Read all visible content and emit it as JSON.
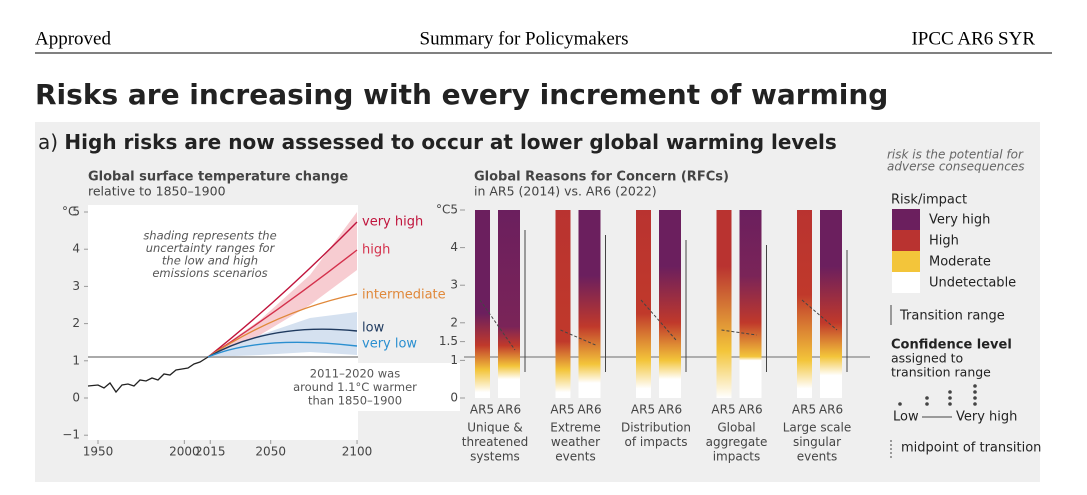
{
  "header": {
    "left": "Approved",
    "center": "Summary for Policymakers",
    "right": "IPCC AR6 SYR"
  },
  "title": "Risks are increasing with every increment of warming",
  "panel": {
    "prefix": "a)",
    "heading": "High risks are now assessed to occur at lower global warming levels"
  },
  "left_chart": {
    "title": "Global surface temperature change",
    "subtitle": "relative to 1850–1900",
    "unit": "°C",
    "yticks": [
      5,
      4,
      3,
      2,
      1,
      0,
      {
        "value": -1,
        "label": "−1"
      }
    ],
    "xticks": [
      1950,
      2000,
      2015,
      2050,
      2100
    ],
    "scenarios": [
      {
        "name": "very high",
        "color": "#c0143c"
      },
      {
        "name": "high",
        "color": "#d4314c"
      },
      {
        "name": "intermediate",
        "color": "#e0883a"
      },
      {
        "name": "low",
        "color": "#1f3a5f"
      },
      {
        "name": "very low",
        "color": "#2a8fd0"
      }
    ],
    "annotation_shading": [
      "shading represents the",
      "uncertainty ranges for",
      "the low and high",
      "emissions scenarios"
    ],
    "annotation_now": [
      "2011–2020 was",
      "around 1.1°C warmer",
      "than 1850–1900"
    ]
  },
  "right_chart": {
    "title": "Global Reasons for Concern (RFCs)",
    "subtitle": "in AR5 (2014) vs. AR6 (2022)",
    "unit": "°C",
    "yticks": [
      5,
      4,
      3,
      2,
      1.5,
      1,
      0
    ],
    "groups": [
      {
        "a": "AR5",
        "b": "AR6",
        "label": [
          "Unique &",
          "threatened",
          "systems"
        ]
      },
      {
        "a": "AR5",
        "b": "AR6",
        "label": [
          "Extreme",
          "weather",
          "events"
        ]
      },
      {
        "a": "AR5",
        "b": "AR6",
        "label": [
          "Distribution",
          "of impacts"
        ]
      },
      {
        "a": "AR5",
        "b": "AR6",
        "label": [
          "Global",
          "aggregate",
          "impacts"
        ]
      },
      {
        "a": "AR5",
        "b": "AR6",
        "label": [
          "Large scale",
          "singular",
          "events"
        ]
      }
    ]
  },
  "legend": {
    "note": [
      "risk is the potential for",
      "adverse consequences"
    ],
    "title": "Risk/impact",
    "items": [
      {
        "name": "Very high",
        "color": "#6b1f5e"
      },
      {
        "name": "High",
        "color": "#b93330"
      },
      {
        "name": "Moderate",
        "color": "#f3c53a"
      },
      {
        "name": "Undetectable",
        "color": "#ffffff"
      }
    ],
    "transition": "Transition range",
    "confidence": [
      "Confidence level",
      "assigned to",
      "transition range"
    ],
    "low": "Low",
    "very_high": "Very high",
    "midpoint": "midpoint of transition"
  }
}
